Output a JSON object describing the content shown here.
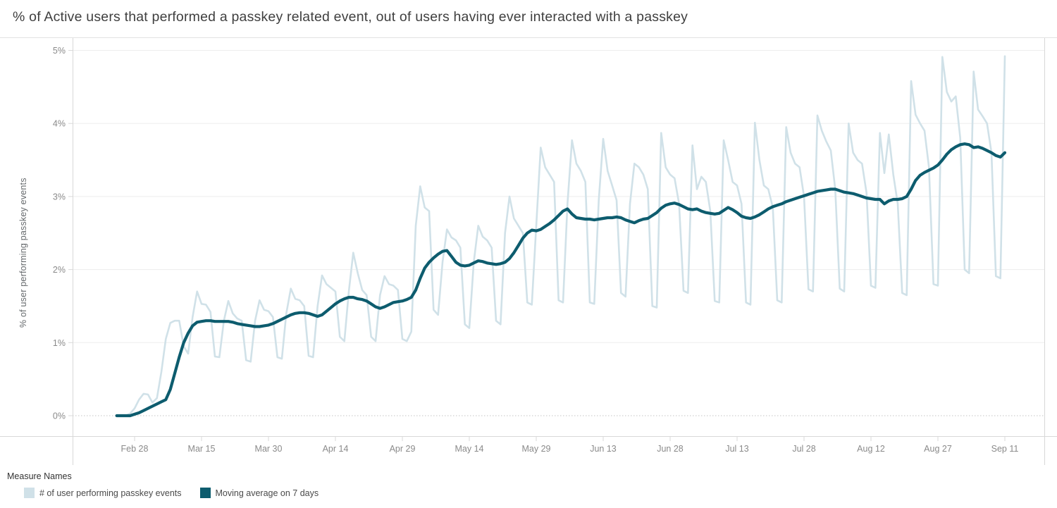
{
  "header": {
    "title": "% of Active users that performed a passkey related event, out of users having ever interacted with a passkey"
  },
  "y_axis": {
    "title": "% of user performing passkey events",
    "tick_labels": [
      "0%",
      "1%",
      "2%",
      "3%",
      "4%",
      "5%"
    ]
  },
  "legend": {
    "title": "Measure Names",
    "items": [
      {
        "label": "# of user performing passkey events",
        "color": "#d0e1e8"
      },
      {
        "label": "Moving average on 7 days",
        "color": "#0d5c6e"
      }
    ]
  },
  "chart_data": {
    "type": "line",
    "title": "% of Active users that performed a passkey related event, out of users having ever interacted with a passkey",
    "xlabel": "",
    "ylabel": "% of user performing passkey events",
    "ylim": [
      0,
      5
    ],
    "y_unit": "%",
    "grid": "horizontal",
    "legend_position": "bottom",
    "x_start_label": "Feb 24",
    "x_cadence": "daily",
    "x_tick_labels": [
      "Feb 28",
      "Mar 15",
      "Mar 30",
      "Apr 14",
      "Apr 29",
      "May 14",
      "May 29",
      "Jun 13",
      "Jun 28",
      "Jul 13",
      "Jul 28",
      "Aug 12",
      "Aug 27",
      "Sep 11"
    ],
    "x_tick_day_indices": [
      4,
      19,
      34,
      49,
      64,
      79,
      94,
      109,
      124,
      139,
      154,
      169,
      184,
      199
    ],
    "series": [
      {
        "name": "# of user performing passkey events",
        "color": "#d0e1e8",
        "values": [
          0.0,
          0.0,
          0.0,
          0.03,
          0.1,
          0.22,
          0.3,
          0.29,
          0.18,
          0.24,
          0.6,
          1.05,
          1.27,
          1.3,
          1.3,
          0.95,
          0.85,
          1.35,
          1.7,
          1.53,
          1.52,
          1.42,
          0.81,
          0.8,
          1.3,
          1.57,
          1.4,
          1.33,
          1.3,
          0.76,
          0.74,
          1.3,
          1.58,
          1.45,
          1.43,
          1.35,
          0.8,
          0.78,
          1.4,
          1.74,
          1.6,
          1.58,
          1.5,
          0.82,
          0.8,
          1.5,
          1.92,
          1.8,
          1.75,
          1.7,
          1.08,
          1.02,
          1.7,
          2.23,
          1.95,
          1.72,
          1.65,
          1.08,
          1.02,
          1.65,
          1.91,
          1.8,
          1.78,
          1.72,
          1.05,
          1.02,
          1.15,
          2.6,
          3.14,
          2.85,
          2.8,
          1.45,
          1.38,
          2.1,
          2.55,
          2.44,
          2.4,
          2.3,
          1.25,
          1.2,
          2.1,
          2.6,
          2.45,
          2.4,
          2.3,
          1.3,
          1.25,
          2.5,
          3.0,
          2.7,
          2.6,
          2.5,
          1.55,
          1.52,
          2.6,
          3.67,
          3.4,
          3.3,
          3.2,
          1.58,
          1.55,
          2.9,
          3.77,
          3.45,
          3.35,
          3.2,
          1.55,
          1.53,
          2.95,
          3.79,
          3.35,
          3.15,
          2.95,
          1.68,
          1.63,
          2.9,
          3.45,
          3.4,
          3.3,
          3.1,
          1.5,
          1.48,
          3.87,
          3.4,
          3.3,
          3.25,
          2.9,
          1.71,
          1.68,
          3.7,
          3.1,
          3.27,
          3.2,
          2.8,
          1.57,
          1.55,
          3.77,
          3.5,
          3.2,
          3.15,
          2.9,
          1.55,
          1.52,
          4.01,
          3.5,
          3.15,
          3.1,
          2.85,
          1.58,
          1.55,
          3.95,
          3.6,
          3.45,
          3.4,
          3.0,
          1.73,
          1.7,
          4.11,
          3.9,
          3.75,
          3.63,
          3.1,
          1.74,
          1.7,
          4.0,
          3.6,
          3.5,
          3.45,
          3.05,
          1.78,
          1.75,
          3.87,
          3.32,
          3.85,
          3.3,
          2.9,
          1.68,
          1.65,
          4.58,
          4.12,
          4.0,
          3.9,
          3.4,
          1.8,
          1.78,
          4.91,
          4.43,
          4.3,
          4.37,
          3.8,
          2.0,
          1.95,
          4.71,
          4.19,
          4.1,
          4.0,
          3.6,
          1.91,
          1.88,
          4.92
        ]
      },
      {
        "name": "Moving average on 7 days",
        "color": "#0d5c6e",
        "values": [
          0.0,
          0.0,
          0.0,
          0.0,
          0.02,
          0.04,
          0.07,
          0.1,
          0.13,
          0.16,
          0.19,
          0.22,
          0.36,
          0.58,
          0.8,
          1.0,
          1.13,
          1.23,
          1.28,
          1.29,
          1.3,
          1.3,
          1.29,
          1.29,
          1.29,
          1.29,
          1.28,
          1.26,
          1.25,
          1.24,
          1.23,
          1.22,
          1.22,
          1.23,
          1.24,
          1.26,
          1.29,
          1.32,
          1.35,
          1.38,
          1.4,
          1.41,
          1.41,
          1.4,
          1.38,
          1.36,
          1.38,
          1.43,
          1.48,
          1.53,
          1.57,
          1.6,
          1.62,
          1.62,
          1.6,
          1.59,
          1.57,
          1.53,
          1.49,
          1.47,
          1.49,
          1.52,
          1.55,
          1.56,
          1.57,
          1.59,
          1.62,
          1.72,
          1.88,
          2.02,
          2.1,
          2.16,
          2.21,
          2.25,
          2.26,
          2.18,
          2.1,
          2.06,
          2.05,
          2.06,
          2.09,
          2.12,
          2.11,
          2.09,
          2.08,
          2.07,
          2.08,
          2.1,
          2.15,
          2.23,
          2.33,
          2.43,
          2.5,
          2.54,
          2.53,
          2.55,
          2.59,
          2.63,
          2.68,
          2.74,
          2.8,
          2.83,
          2.76,
          2.71,
          2.7,
          2.69,
          2.69,
          2.68,
          2.69,
          2.7,
          2.71,
          2.71,
          2.72,
          2.71,
          2.68,
          2.66,
          2.64,
          2.67,
          2.69,
          2.7,
          2.74,
          2.78,
          2.84,
          2.88,
          2.9,
          2.91,
          2.89,
          2.86,
          2.83,
          2.82,
          2.83,
          2.8,
          2.78,
          2.77,
          2.76,
          2.77,
          2.81,
          2.85,
          2.82,
          2.78,
          2.73,
          2.71,
          2.7,
          2.72,
          2.75,
          2.79,
          2.83,
          2.86,
          2.88,
          2.9,
          2.93,
          2.95,
          2.97,
          2.99,
          3.01,
          3.03,
          3.05,
          3.07,
          3.08,
          3.09,
          3.1,
          3.1,
          3.08,
          3.06,
          3.05,
          3.04,
          3.02,
          3.0,
          2.98,
          2.97,
          2.96,
          2.96,
          2.9,
          2.94,
          2.96,
          2.96,
          2.97,
          3.0,
          3.1,
          3.22,
          3.29,
          3.33,
          3.36,
          3.39,
          3.43,
          3.5,
          3.58,
          3.64,
          3.68,
          3.71,
          3.72,
          3.71,
          3.67,
          3.68,
          3.66,
          3.63,
          3.6,
          3.56,
          3.54,
          3.6
        ]
      }
    ]
  }
}
